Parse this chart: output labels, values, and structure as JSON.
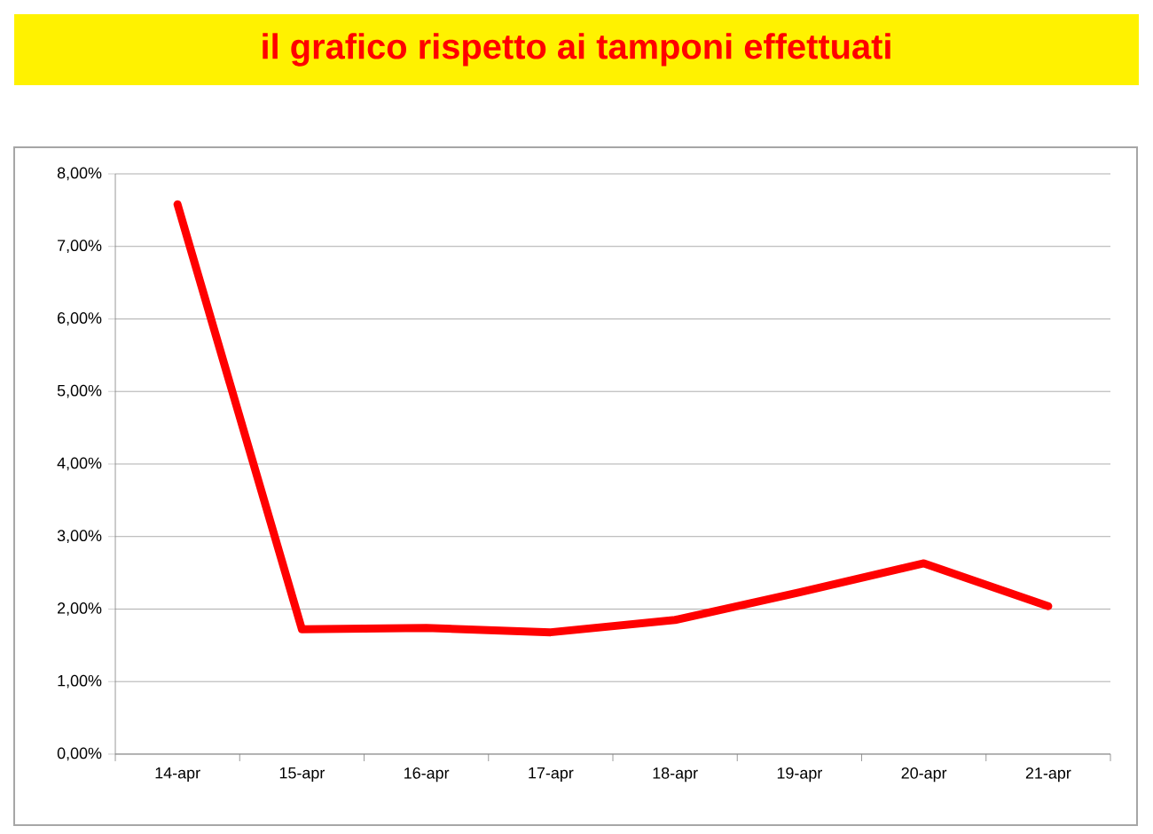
{
  "chart_data": {
    "type": "line",
    "title": "il grafico rispetto ai tamponi effettuati",
    "categories": [
      "14-apr",
      "15-apr",
      "16-apr",
      "17-apr",
      "18-apr",
      "19-apr",
      "20-apr",
      "21-apr"
    ],
    "series": [
      {
        "color": "#ff0000",
        "values": [
          7.58,
          1.72,
          1.74,
          1.68,
          1.85,
          2.23,
          2.63,
          2.04
        ]
      }
    ],
    "ylim": [
      0,
      8
    ],
    "yticks": [
      {
        "value": 0,
        "label": "0,00%"
      },
      {
        "value": 1,
        "label": "1,00%"
      },
      {
        "value": 2,
        "label": "2,00%"
      },
      {
        "value": 3,
        "label": "3,00%"
      },
      {
        "value": 4,
        "label": "4,00%"
      },
      {
        "value": 5,
        "label": "5,00%"
      },
      {
        "value": 6,
        "label": "6,00%"
      },
      {
        "value": 7,
        "label": "7,00%"
      },
      {
        "value": 8,
        "label": "8,00%"
      }
    ],
    "grid": "y",
    "marker": "none",
    "line_style": "solid"
  }
}
